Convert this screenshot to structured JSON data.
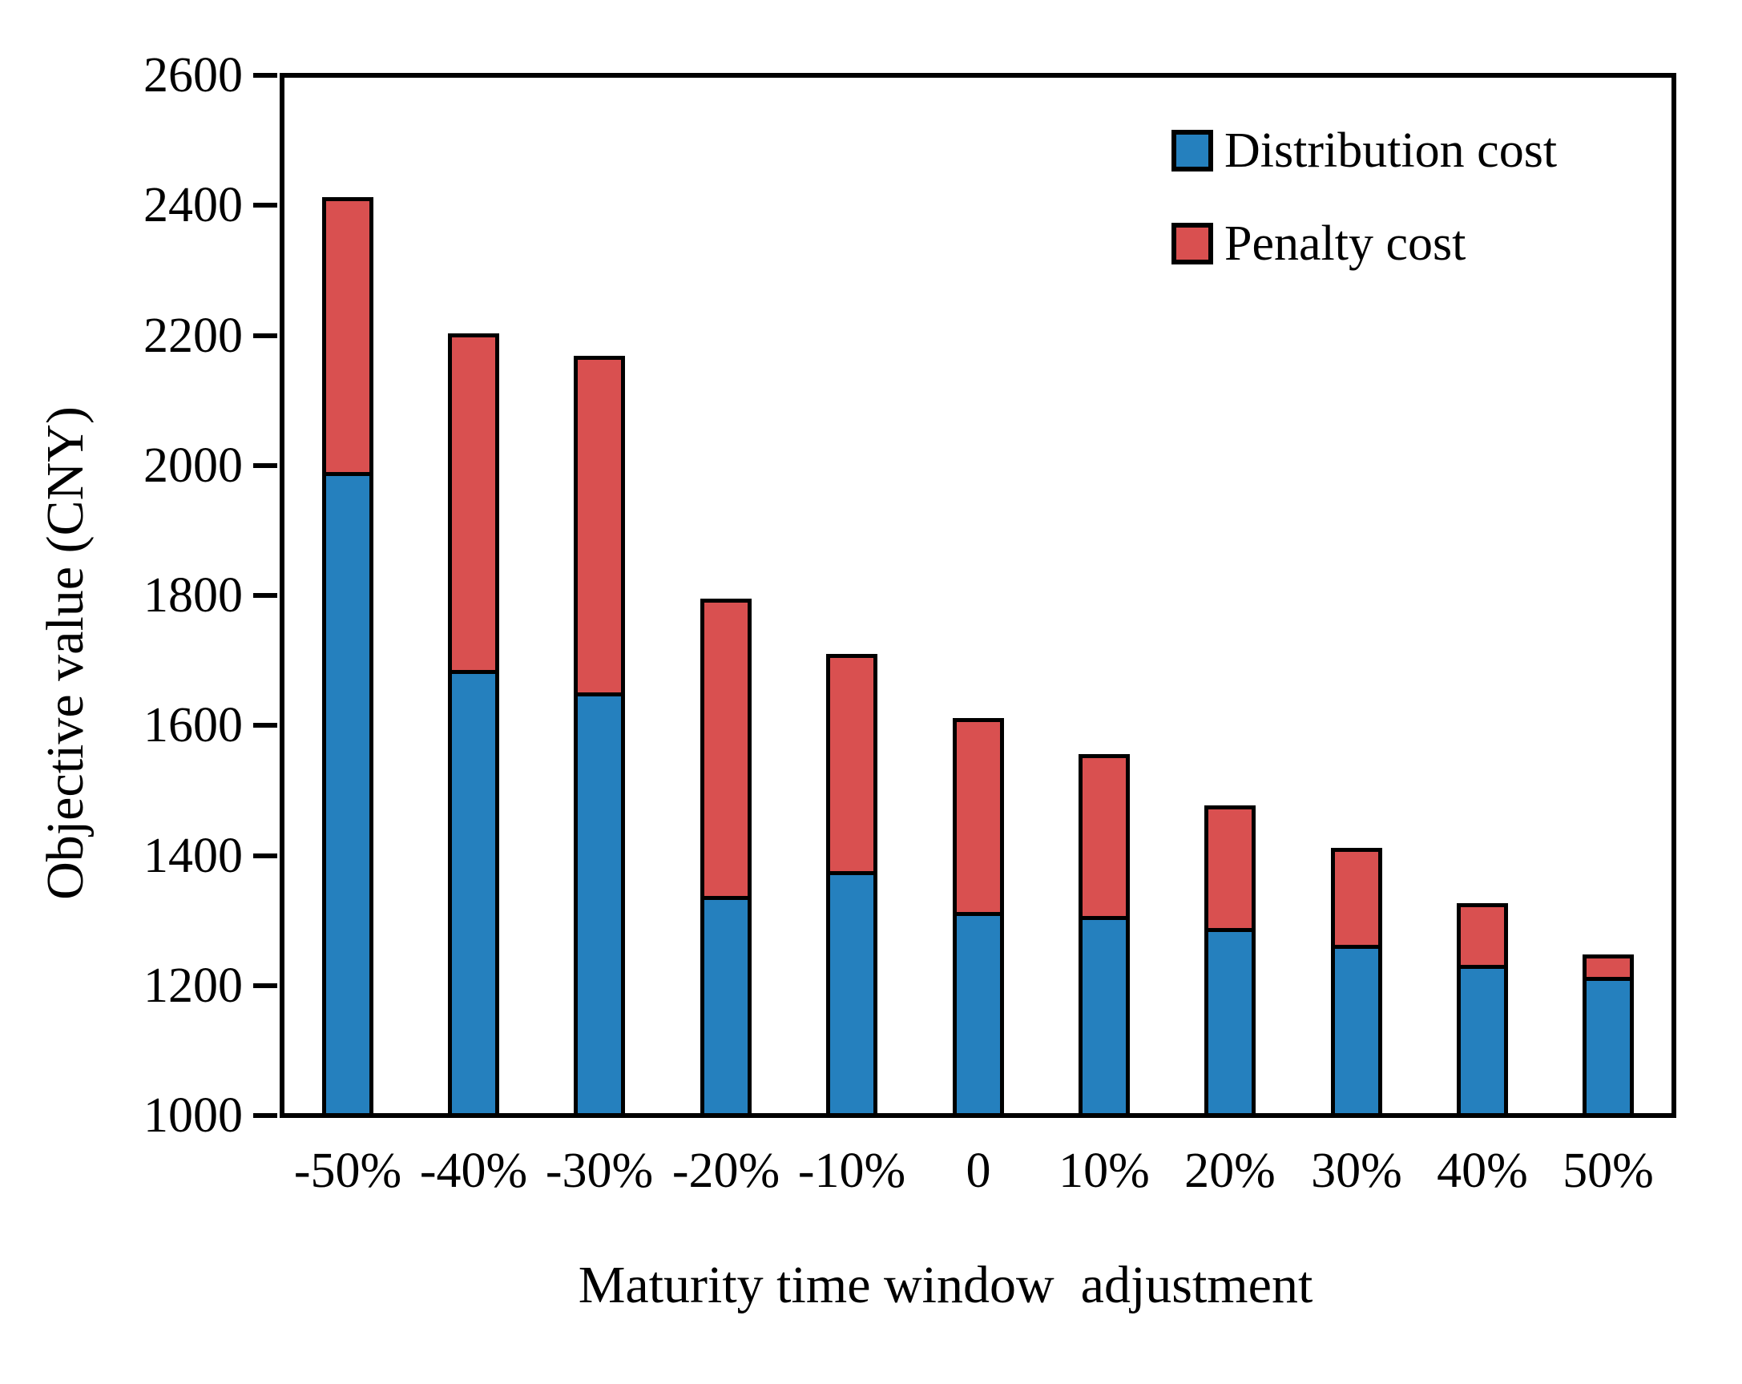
{
  "figure": {
    "background": "#ffffff",
    "frame_color": "#000000"
  },
  "chart_data": {
    "type": "bar",
    "stacked": true,
    "title": "",
    "xlabel": "Maturity time window  adjustment",
    "ylabel": "Objective value (CNY)",
    "categories": [
      "-50%",
      "-40%",
      "-30%",
      "-20%",
      "-10%",
      "0",
      "10%",
      "20%",
      "30%",
      "40%",
      "50%"
    ],
    "series": [
      {
        "name": "Distribution cost",
        "color": "#2580BE",
        "values": [
          1990,
          1685,
          1650,
          1335,
          1375,
          1310,
          1305,
          1285,
          1260,
          1230,
          1210
        ]
      },
      {
        "name": "Penalty cost",
        "color": "#D95050",
        "values": [
          425,
          520,
          520,
          460,
          335,
          300,
          250,
          190,
          150,
          95,
          35
        ]
      }
    ],
    "stack_totals": [
      2415,
      2205,
      2170,
      1795,
      1710,
      1610,
      1555,
      1475,
      1410,
      1325,
      1245
    ],
    "ylim": [
      1000,
      2600
    ],
    "ytick_step": 200,
    "ytick_labels": [
      "2600",
      "2400",
      "2200",
      "2000",
      "1800",
      "1600",
      "1400",
      "1200",
      "1000"
    ],
    "grid": false,
    "legend_position": "top-right-inside",
    "bar_outline_color": "#000000"
  }
}
